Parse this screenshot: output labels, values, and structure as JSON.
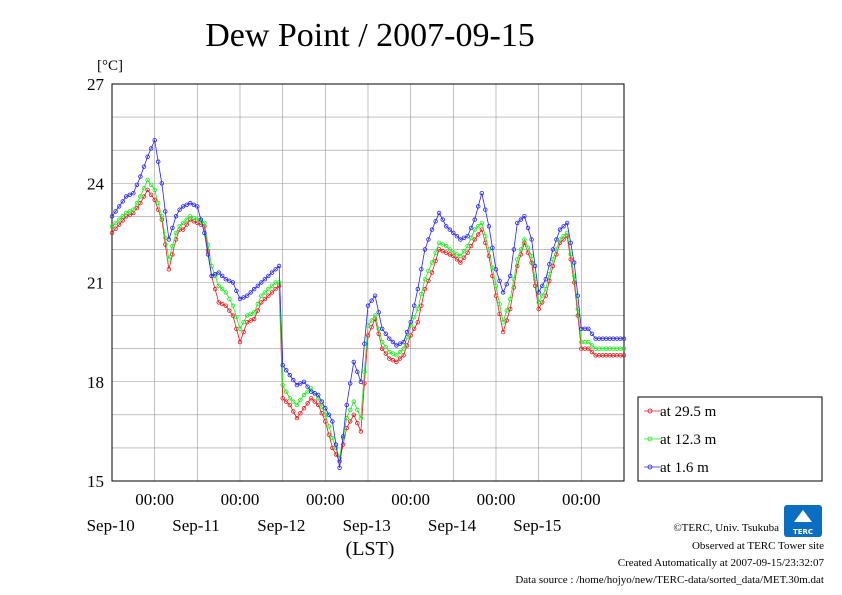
{
  "chart_data": {
    "type": "line",
    "title": "Dew Point / 2007-09-15",
    "ylabel": "[°C]",
    "xlabel": "(LST)",
    "ylim": [
      15,
      27
    ],
    "yticks": [
      15,
      18,
      21,
      24,
      27
    ],
    "xlim_days": [
      "2007-09-09 12:00",
      "2007-09-15 12:00"
    ],
    "time_tick_label": "00:00",
    "day_labels": [
      "Sep-10",
      "Sep-11",
      "Sep-12",
      "Sep-13",
      "Sep-14",
      "Sep-15"
    ],
    "grid": true,
    "legend_position": "right",
    "x_hours_since_start": [
      0,
      4,
      6,
      8,
      10,
      12,
      14,
      16,
      18,
      19,
      20,
      22,
      24,
      26,
      28,
      30,
      32,
      34,
      36,
      38,
      40,
      42,
      44,
      46,
      47,
      48,
      50,
      52,
      54,
      56,
      58,
      60,
      62,
      64,
      66,
      68,
      70,
      72,
      74,
      76,
      78,
      80,
      82,
      84,
      86,
      88,
      90,
      92,
      94,
      96,
      98,
      100,
      102,
      104,
      106,
      108,
      110,
      112,
      114,
      116,
      118,
      120,
      122,
      124,
      126,
      128,
      130,
      132,
      134,
      136,
      138,
      140,
      142,
      144
    ],
    "series": [
      {
        "name": "at 29.5 m",
        "color": "#e41a1c",
        "values": [
          22.5,
          23.0,
          23.1,
          23.4,
          23.8,
          23.5,
          22.9,
          21.4,
          22.3,
          22.6,
          22.6,
          22.9,
          22.8,
          22.7,
          21.2,
          20.4,
          20.3,
          20.0,
          19.2,
          19.8,
          19.9,
          20.4,
          20.6,
          20.8,
          20.9,
          17.5,
          17.3,
          16.9,
          17.2,
          17.5,
          17.3,
          16.8,
          16.0,
          15.6,
          16.6,
          17.0,
          16.5,
          19.4,
          19.9,
          19.0,
          18.7,
          18.6,
          18.8,
          19.4,
          19.8,
          20.8,
          21.3,
          22.0,
          21.9,
          21.8,
          21.6,
          21.9,
          22.3,
          22.6,
          21.8,
          20.6,
          19.5,
          20.2,
          21.5,
          22.2,
          21.6,
          20.2,
          20.6,
          21.5,
          22.2,
          22.4,
          21.0,
          19.0,
          19.0,
          18.8,
          18.8,
          18.8,
          18.8,
          18.8
        ],
        "note": ""
      },
      {
        "name": "at 12.3 m",
        "color": "#1eea1e",
        "values": [
          22.7,
          23.1,
          23.2,
          23.6,
          24.1,
          23.8,
          23.0,
          21.7,
          22.5,
          22.7,
          22.8,
          23.0,
          22.9,
          22.8,
          21.5,
          20.9,
          20.7,
          20.3,
          19.6,
          20.0,
          20.1,
          20.6,
          20.8,
          21.0,
          21.0,
          17.9,
          17.5,
          17.3,
          17.6,
          17.8,
          17.5,
          17.0,
          16.3,
          15.7,
          16.9,
          17.4,
          16.9,
          19.7,
          20.0,
          19.2,
          18.9,
          18.8,
          19.0,
          19.7,
          20.2,
          21.1,
          21.6,
          22.2,
          22.1,
          21.9,
          21.8,
          22.1,
          22.6,
          22.8,
          22.0,
          20.9,
          19.8,
          20.5,
          21.7,
          22.3,
          21.8,
          20.4,
          20.8,
          21.7,
          22.3,
          22.5,
          21.2,
          19.2,
          19.2,
          19.0,
          19.0,
          19.0,
          19.0,
          19.0
        ]
      },
      {
        "name": "at 1.6 m",
        "color": "#2424f0",
        "values": [
          23.0,
          23.6,
          23.7,
          24.2,
          24.8,
          25.3,
          24.0,
          22.3,
          23.0,
          23.2,
          23.3,
          23.4,
          23.3,
          22.5,
          21.2,
          21.3,
          21.1,
          21.0,
          20.5,
          20.6,
          20.8,
          21.0,
          21.2,
          21.4,
          21.5,
          18.5,
          18.2,
          17.9,
          18.0,
          17.7,
          17.6,
          17.2,
          16.8,
          15.4,
          17.3,
          18.6,
          18.0,
          20.3,
          20.6,
          19.6,
          19.3,
          19.1,
          19.2,
          19.8,
          20.8,
          22.0,
          22.6,
          23.1,
          22.7,
          22.5,
          22.3,
          22.4,
          22.9,
          23.7,
          22.7,
          21.4,
          20.7,
          21.2,
          22.8,
          23.0,
          22.3,
          20.7,
          21.1,
          22.0,
          22.6,
          22.8,
          21.6,
          19.6,
          19.6,
          19.3,
          19.3,
          19.3,
          19.3,
          19.3
        ]
      }
    ]
  },
  "credits": {
    "copyright": "©TERC, Univ. Tsukuba",
    "observed": "Observed at TERC Tower site",
    "created": "Created Automatically at 2007-09-15/23:32:07",
    "source": "Data source : /home/hojyo/new/TERC-data/sorted_data/MET.30m.dat",
    "logo_text": "TERC"
  }
}
